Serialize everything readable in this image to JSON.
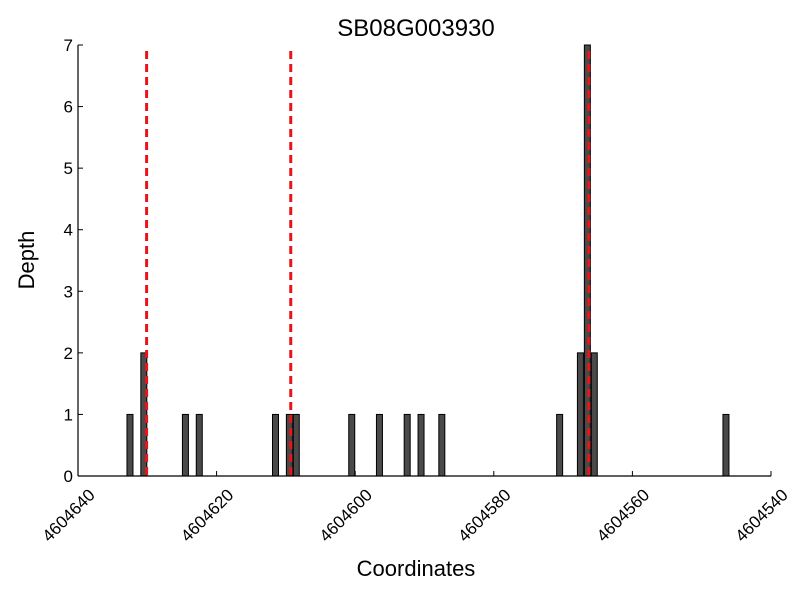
{
  "chart_data": {
    "type": "bar",
    "title": "SB08G003930",
    "xlabel": "Coordinates",
    "ylabel": "Depth",
    "x_reversed": true,
    "xlim": [
      4604640,
      4604540
    ],
    "ylim": [
      0,
      7
    ],
    "x_ticks": [
      4604640,
      4604620,
      4604600,
      4604580,
      4604560,
      4604540
    ],
    "x_tick_labels": [
      "4604640",
      "4604620",
      "4604600",
      "4604580",
      "4604560",
      "4604540"
    ],
    "y_ticks": [
      0,
      1,
      2,
      3,
      4,
      5,
      6,
      7
    ],
    "y_tick_labels": [
      "0",
      "1",
      "2",
      "3",
      "4",
      "5",
      "6",
      "7"
    ],
    "bar_color": "#4a4a4a",
    "series": [
      {
        "bars": [
          {
            "x": 4604632.5,
            "value": 1
          },
          {
            "x": 4604630.5,
            "value": 2
          },
          {
            "x": 4604624.5,
            "value": 1
          },
          {
            "x": 4604622.5,
            "value": 1
          },
          {
            "x": 4604611.5,
            "value": 1
          },
          {
            "x": 4604609.5,
            "value": 1
          },
          {
            "x": 4604608.5,
            "value": 1
          },
          {
            "x": 4604600.5,
            "value": 1
          },
          {
            "x": 4604596.5,
            "value": 1
          },
          {
            "x": 4604592.5,
            "value": 1
          },
          {
            "x": 4604590.5,
            "value": 1
          },
          {
            "x": 4604587.5,
            "value": 1
          },
          {
            "x": 4604570.5,
            "value": 1
          },
          {
            "x": 4604567.5,
            "value": 2
          },
          {
            "x": 4604566.5,
            "value": 7
          },
          {
            "x": 4604565.5,
            "value": 2
          },
          {
            "x": 4604546.5,
            "value": 1
          }
        ]
      }
    ],
    "reference_lines": [
      {
        "x": 4604630.1,
        "color": "#e8141a",
        "style": "dashed"
      },
      {
        "x": 4604609.3,
        "color": "#e8141a",
        "style": "dashed"
      },
      {
        "x": 4604566.3,
        "color": "#e8141a",
        "style": "dashed"
      }
    ],
    "grid": false
  }
}
